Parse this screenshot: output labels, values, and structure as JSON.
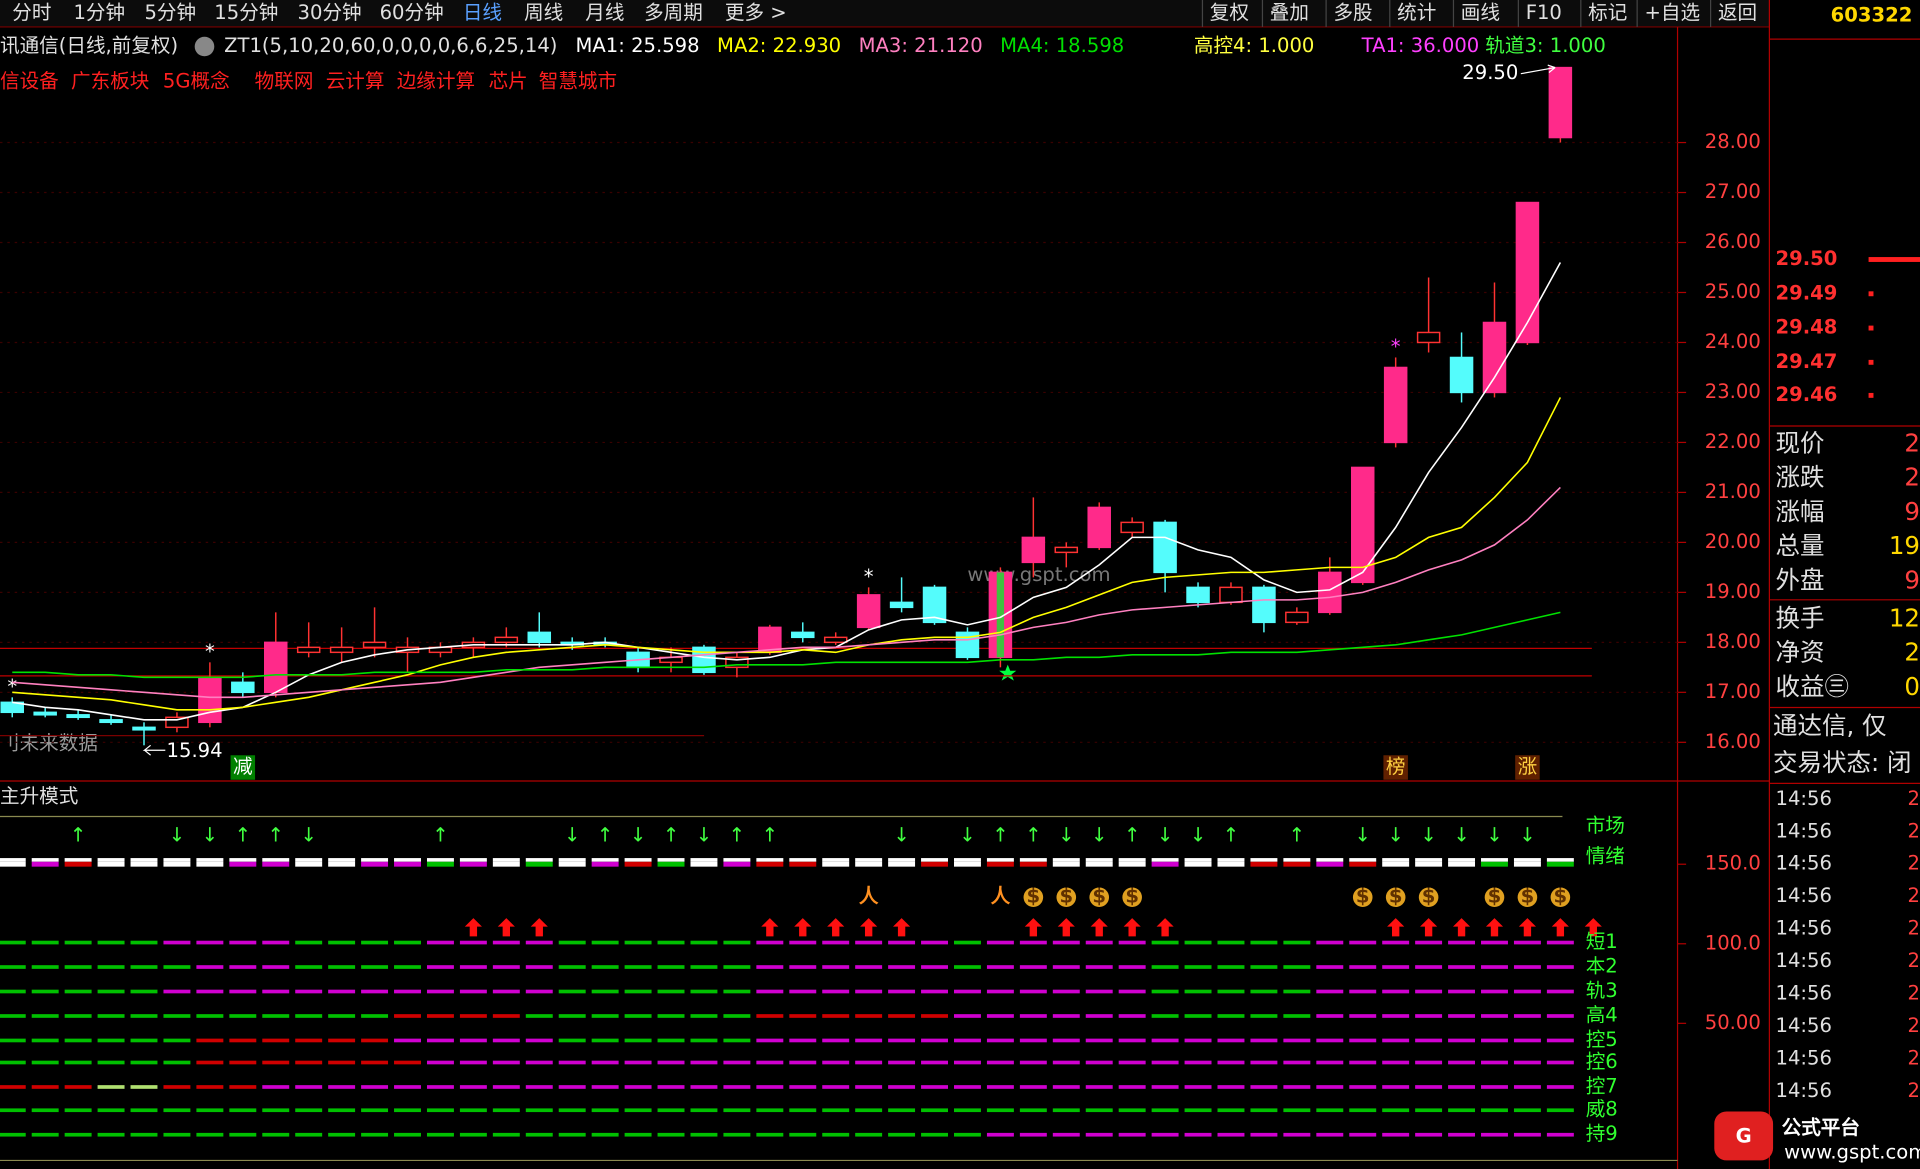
{
  "toolbar": {
    "left": [
      "分时",
      "1分钟",
      "5分钟",
      "15分钟",
      "30分钟",
      "60分钟",
      "日线",
      "周线",
      "月线",
      "多周期",
      "更多 >"
    ],
    "right": [
      "复权",
      "叠加",
      "多股",
      "统计",
      "画线",
      "F10",
      "标记",
      "+自选",
      "返回"
    ],
    "code": "603322"
  },
  "chart_data": {
    "type": "candlestick",
    "title": "讯通信(日线,前复权)",
    "indicator": "ZT1(5,10,20,60,0,0,0,0,6,6,25,14)",
    "concepts": [
      "信设备",
      "广东板块",
      "5G概念",
      "物联网",
      "云计算",
      "边缘计算",
      "芯片",
      "智慧城市"
    ],
    "indicator_values": [
      {
        "text": "高控4: 1.000",
        "color": "#ffff40"
      },
      {
        "text": "TA1: 36.000",
        "color": "#ff40ff"
      },
      {
        "text": "轨道3: 1.000",
        "color": "#40ff40"
      }
    ],
    "open": [
      16.8,
      16.6,
      16.55,
      16.45,
      16.3,
      16.3,
      16.4,
      17.2,
      17.0,
      17.8,
      17.8,
      17.9,
      17.8,
      17.8,
      17.9,
      18.0,
      18.2,
      18.0,
      18.0,
      17.8,
      17.6,
      17.9,
      17.5,
      17.8,
      18.2,
      18.0,
      18.3,
      18.8,
      19.1,
      18.2,
      17.7,
      19.6,
      19.8,
      19.9,
      20.2,
      20.4,
      19.1,
      18.8,
      19.1,
      18.4,
      18.6,
      19.2,
      22.0,
      24.0,
      23.7,
      23.0,
      24.0,
      28.1
    ],
    "high": [
      16.9,
      16.7,
      16.65,
      16.55,
      16.4,
      16.6,
      17.6,
      17.4,
      18.6,
      18.4,
      18.3,
      18.7,
      18.1,
      18.0,
      18.1,
      18.3,
      18.6,
      18.1,
      18.1,
      17.9,
      17.9,
      17.95,
      17.8,
      18.35,
      18.4,
      18.2,
      19.1,
      19.3,
      19.15,
      18.3,
      19.5,
      20.9,
      20.0,
      20.8,
      20.5,
      20.45,
      19.2,
      19.2,
      19.15,
      18.7,
      19.7,
      21.5,
      23.7,
      25.3,
      24.2,
      25.2,
      26.8,
      29.5
    ],
    "low": [
      16.5,
      16.5,
      16.45,
      16.35,
      15.94,
      16.2,
      16.3,
      16.9,
      16.9,
      17.7,
      17.6,
      17.7,
      17.4,
      17.7,
      17.7,
      17.9,
      17.9,
      17.85,
      17.9,
      17.4,
      17.4,
      17.35,
      17.3,
      17.75,
      18.0,
      17.95,
      18.25,
      18.6,
      18.35,
      17.65,
      17.5,
      19.3,
      19.5,
      19.85,
      20.1,
      19.0,
      18.7,
      18.75,
      18.2,
      18.35,
      18.55,
      19.15,
      21.9,
      23.8,
      22.8,
      22.9,
      23.95,
      28.0
    ],
    "close": [
      16.6,
      16.55,
      16.5,
      16.4,
      16.25,
      16.5,
      17.3,
      17.0,
      18.0,
      17.9,
      17.9,
      18.0,
      17.9,
      17.9,
      18.0,
      18.1,
      18.0,
      17.95,
      17.95,
      17.5,
      17.7,
      17.4,
      17.7,
      18.3,
      18.1,
      18.1,
      18.95,
      18.7,
      18.4,
      17.7,
      19.4,
      20.1,
      19.9,
      20.7,
      20.4,
      19.4,
      18.8,
      19.1,
      18.4,
      18.6,
      19.4,
      21.5,
      23.5,
      24.2,
      23.0,
      24.4,
      26.8,
      29.5
    ],
    "series": [
      {
        "name": "MA1: 25.598",
        "color": "#ffffff",
        "values": [
          16.8,
          16.7,
          16.65,
          16.55,
          16.45,
          16.45,
          16.6,
          16.7,
          17.0,
          17.35,
          17.6,
          17.75,
          17.85,
          17.9,
          17.95,
          17.95,
          17.95,
          17.95,
          18.0,
          17.9,
          17.8,
          17.7,
          17.65,
          17.7,
          17.85,
          17.9,
          18.25,
          18.45,
          18.5,
          18.35,
          18.5,
          18.9,
          19.1,
          19.55,
          20.1,
          20.1,
          19.85,
          19.7,
          19.25,
          19.0,
          19.05,
          19.4,
          20.3,
          21.4,
          22.3,
          23.3,
          24.4,
          25.6
        ]
      },
      {
        "name": "MA2: 22.930",
        "color": "#ffff00",
        "values": [
          17.0,
          16.95,
          16.9,
          16.85,
          16.75,
          16.65,
          16.65,
          16.7,
          16.8,
          16.9,
          17.05,
          17.2,
          17.35,
          17.55,
          17.7,
          17.8,
          17.85,
          17.9,
          17.95,
          17.9,
          17.85,
          17.8,
          17.8,
          17.8,
          17.85,
          17.8,
          17.95,
          18.05,
          18.1,
          18.1,
          18.2,
          18.5,
          18.7,
          18.95,
          19.2,
          19.3,
          19.35,
          19.4,
          19.4,
          19.45,
          19.5,
          19.5,
          19.7,
          20.1,
          20.3,
          20.9,
          21.6,
          22.9
        ]
      },
      {
        "name": "MA3: 21.120",
        "color": "#ff80c0",
        "values": [
          17.2,
          17.15,
          17.1,
          17.05,
          17.0,
          16.95,
          16.9,
          16.9,
          16.95,
          17.0,
          17.05,
          17.1,
          17.15,
          17.2,
          17.3,
          17.4,
          17.5,
          17.55,
          17.6,
          17.65,
          17.7,
          17.75,
          17.8,
          17.85,
          17.9,
          17.9,
          17.95,
          18.0,
          18.05,
          18.05,
          18.15,
          18.3,
          18.4,
          18.55,
          18.65,
          18.7,
          18.75,
          18.8,
          18.85,
          18.85,
          18.9,
          19.0,
          19.2,
          19.45,
          19.65,
          19.95,
          20.45,
          21.1
        ]
      },
      {
        "name": "MA4: 18.598",
        "color": "#00e000",
        "values": [
          17.4,
          17.4,
          17.35,
          17.35,
          17.3,
          17.3,
          17.3,
          17.3,
          17.35,
          17.35,
          17.35,
          17.4,
          17.4,
          17.4,
          17.4,
          17.45,
          17.45,
          17.45,
          17.5,
          17.5,
          17.5,
          17.5,
          17.55,
          17.55,
          17.55,
          17.6,
          17.6,
          17.6,
          17.6,
          17.6,
          17.65,
          17.65,
          17.7,
          17.7,
          17.75,
          17.75,
          17.75,
          17.8,
          17.8,
          17.8,
          17.85,
          17.9,
          17.95,
          18.05,
          18.15,
          18.3,
          18.45,
          18.6
        ]
      }
    ],
    "ylim": [
      15.3,
      29.75
    ],
    "yticks": [
      {
        "value": 28,
        "label": "28.00"
      },
      {
        "value": 27,
        "label": "27.00"
      },
      {
        "value": 26,
        "label": "26.00"
      },
      {
        "value": 25,
        "label": "25.00"
      },
      {
        "value": 24,
        "label": "24.00"
      },
      {
        "value": 23,
        "label": "23.00"
      },
      {
        "value": 22,
        "label": "22.00"
      },
      {
        "value": 21,
        "label": "21.00"
      },
      {
        "value": 20,
        "label": "20.00"
      },
      {
        "value": 19,
        "label": "19.00"
      },
      {
        "value": 18,
        "label": "18.00"
      },
      {
        "value": 17,
        "label": "17.00"
      },
      {
        "value": 16,
        "label": "16.00"
      }
    ],
    "high_label": {
      "value": 29.5,
      "label": "29.50"
    },
    "low_label": {
      "value": 15.94,
      "label": "15.94"
    },
    "levels": [
      17.88,
      17.33
    ],
    "stars": [
      "*",
      null,
      null,
      null,
      null,
      null,
      "*",
      null,
      null,
      null,
      null,
      null,
      null,
      null,
      null,
      null,
      null,
      null,
      null,
      null,
      null,
      null,
      null,
      null,
      null,
      null,
      "*",
      null,
      null,
      null,
      null,
      null,
      null,
      null,
      null,
      null,
      null,
      null,
      null,
      null,
      null,
      null,
      "*",
      null,
      null,
      null,
      null,
      null
    ],
    "bottom_marks": [
      null,
      null,
      null,
      null,
      null,
      null,
      null,
      "减",
      null,
      null,
      null,
      null,
      null,
      null,
      null,
      null,
      null,
      null,
      null,
      null,
      null,
      null,
      null,
      null,
      null,
      null,
      null,
      null,
      null,
      null,
      null,
      null,
      null,
      null,
      null,
      null,
      null,
      null,
      null,
      null,
      null,
      null,
      "榜",
      null,
      null,
      null,
      "涨",
      null
    ],
    "watermark": "www.gspt.com",
    "future_data": "刂未来数据"
  },
  "indicator_panel": {
    "title": "主升模式",
    "labels": [
      "市场",
      "情绪"
    ],
    "row_labels": [
      "短1",
      "本2",
      "轨3",
      "高4",
      "控5",
      "控6",
      "控7",
      "威8",
      "持9"
    ],
    "ylim": [
      -37.7,
      185.4
    ],
    "yticks": [
      {
        "value": 150,
        "label": "150.0"
      },
      {
        "value": 100,
        "label": "100.0"
      },
      {
        "value": 50,
        "label": "50.00"
      }
    ],
    "mood": "wmrwwwwmmwwmmgmwgwmrgwmrrwwwrwrrwwwmwwrrmrwwwgwg",
    "arrows": [
      null,
      null,
      "↑",
      null,
      null,
      "↓",
      "↓",
      "↑",
      "↑",
      "↓",
      null,
      null,
      null,
      "↑",
      null,
      null,
      null,
      "↓",
      "↑",
      "↓",
      "↑",
      "↓",
      "↑",
      "↑",
      null,
      null,
      null,
      "↓",
      null,
      "↓",
      "↑",
      "↑",
      "↓",
      "↓",
      "↑",
      "↓",
      "↓",
      "↑",
      null,
      "↑",
      null,
      "↓",
      "↓",
      "↓",
      "↓",
      "↓",
      "↓",
      null
    ],
    "icons": [
      null,
      null,
      null,
      null,
      null,
      null,
      null,
      null,
      null,
      null,
      null,
      null,
      null,
      null,
      null,
      null,
      null,
      null,
      null,
      null,
      null,
      null,
      null,
      null,
      null,
      null,
      "人",
      null,
      null,
      null,
      "人",
      "$",
      "$",
      "$",
      "$",
      null,
      null,
      null,
      null,
      null,
      null,
      "$",
      "$",
      "$",
      null,
      "$",
      "$",
      "$"
    ],
    "buy": "..............AAA......AAAAA...AAAAA......AAAAAAA",
    "rows": [
      "gggggmmmmggggmmmmggggggmmmmmmgmmmmmgggggmmmmmmmm",
      "ggggggmmmggggmmmmggggggmmmmmmgmmmmmgggggmmmmmmmm",
      "gggggmmmmmmmmmmmmggggggmmmmmmmmmmmmgggggmmmmmmmm",
      "ggggggggggggrrrrgggggggrrrrrrmmmmmmgggggmmmmmmmm",
      "ggggggrrrrrrmmmmmggggggmmmmmmmmmmmmmmmmmmmmmmmmm",
      "ggggggrrrrrrrmmmmmmmmmmmmmmmmmmmmmmmmmmmmmmmmmmm",
      "rrryyrrrmmmmmmmmmmmmmmmmmmmmmmmmmmmmmmmmmmmmmmmm",
      "gggggggggggggggggggggggggggggggggggggggggggggggg",
      "ggggggggggggggggggggggggggggggmmmmmmmmmmmmmmmmmm"
    ]
  },
  "quote_panel": {
    "book": [
      "29.50",
      "29.49",
      "29.48",
      "29.47",
      "29.46"
    ],
    "fields": [
      {
        "label": "现价",
        "value": "2"
      },
      {
        "label": "涨跌",
        "value": "2"
      },
      {
        "label": "涨幅",
        "value": "9"
      },
      {
        "label": "总量",
        "value": "19"
      },
      {
        "label": "外盘",
        "value": "9"
      },
      {
        "label": "换手",
        "value": "12"
      },
      {
        "label": "净资",
        "value": "2"
      },
      {
        "label": "收益㊂",
        "value": "0"
      }
    ],
    "notes": [
      "通达信, 仅",
      "交易状态: 闭"
    ],
    "times": [
      "14:56",
      "14:56",
      "14:56",
      "14:56",
      "14:56",
      "14:56",
      "14:56",
      "14:56",
      "14:56",
      "14:56"
    ],
    "time_values": [
      "2",
      "2",
      "2",
      "2",
      "2",
      "2",
      "2",
      "2",
      "2",
      "2"
    ]
  },
  "logo": {
    "icon": "G",
    "name": "公式平台",
    "url": "www.gspt.com"
  }
}
